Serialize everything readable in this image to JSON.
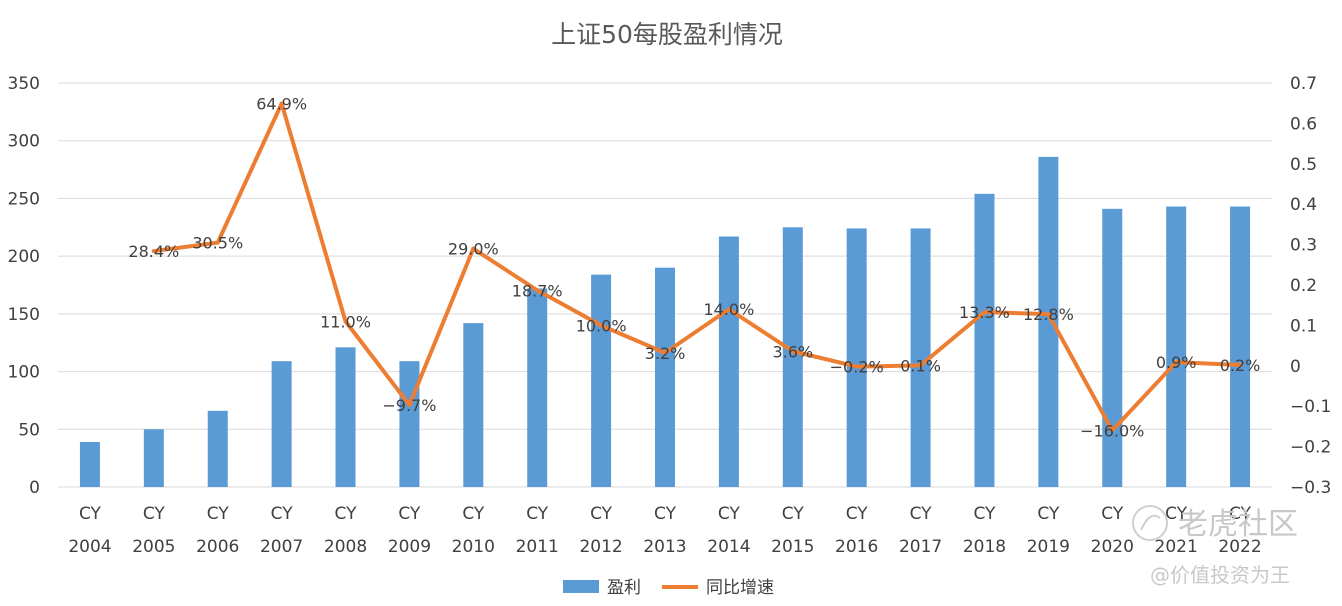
{
  "chart_data": {
    "type": "bar+line",
    "title": "上证50每股盈利情况",
    "categories": [
      [
        "CY",
        "2004"
      ],
      [
        "CY",
        "2005"
      ],
      [
        "CY",
        "2006"
      ],
      [
        "CY",
        "2007"
      ],
      [
        "CY",
        "2008"
      ],
      [
        "CY",
        "2009"
      ],
      [
        "CY",
        "2010"
      ],
      [
        "CY",
        "2011"
      ],
      [
        "CY",
        "2012"
      ],
      [
        "CY",
        "2013"
      ],
      [
        "CY",
        "2014"
      ],
      [
        "CY",
        "2015"
      ],
      [
        "CY",
        "2016"
      ],
      [
        "CY",
        "2017"
      ],
      [
        "CY",
        "2018"
      ],
      [
        "CY",
        "2019"
      ],
      [
        "CY",
        "2020"
      ],
      [
        "CY",
        "2021"
      ],
      [
        "CY",
        "2022"
      ]
    ],
    "series": [
      {
        "name": "盈利",
        "type": "bar",
        "axis": "left",
        "color": "#5b9bd5",
        "values": [
          39,
          50,
          66,
          109,
          121,
          109,
          142,
          172,
          184,
          190,
          217,
          225,
          224,
          224,
          254,
          286,
          241,
          243,
          243
        ]
      },
      {
        "name": "同比增速",
        "type": "line",
        "axis": "right",
        "color": "#ed7d31",
        "values": [
          null,
          0.284,
          0.305,
          0.649,
          0.11,
          -0.097,
          0.29,
          0.187,
          0.1,
          0.032,
          0.14,
          0.036,
          -0.002,
          0.001,
          0.133,
          0.128,
          -0.16,
          0.009,
          0.002
        ],
        "labels": [
          null,
          "28.4%",
          "30.5%",
          "64.9%",
          "11.0%",
          "−9.7%",
          "29.0%",
          "18.7%",
          "10.0%",
          "3.2%",
          "14.0%",
          "3.6%",
          "−0.2%",
          "0.1%",
          "13.3%",
          "12.8%",
          "−16.0%",
          "0.9%",
          "0.2%"
        ]
      }
    ],
    "y_left": {
      "min": 0,
      "max": 350,
      "step": 50,
      "ticks": [
        "0",
        "50",
        "100",
        "150",
        "200",
        "250",
        "300",
        "350"
      ]
    },
    "y_right": {
      "min": -0.3,
      "max": 0.7,
      "step": 0.1,
      "ticks": [
        "−0.3",
        "−0.2",
        "−0.1",
        "0",
        "0.1",
        "0.2",
        "0.3",
        "0.4",
        "0.5",
        "0.6",
        "0.7"
      ]
    },
    "grid": true,
    "legend_position": "bottom"
  },
  "watermark": {
    "brand": "老虎社区",
    "author": "@价值投资为王"
  }
}
